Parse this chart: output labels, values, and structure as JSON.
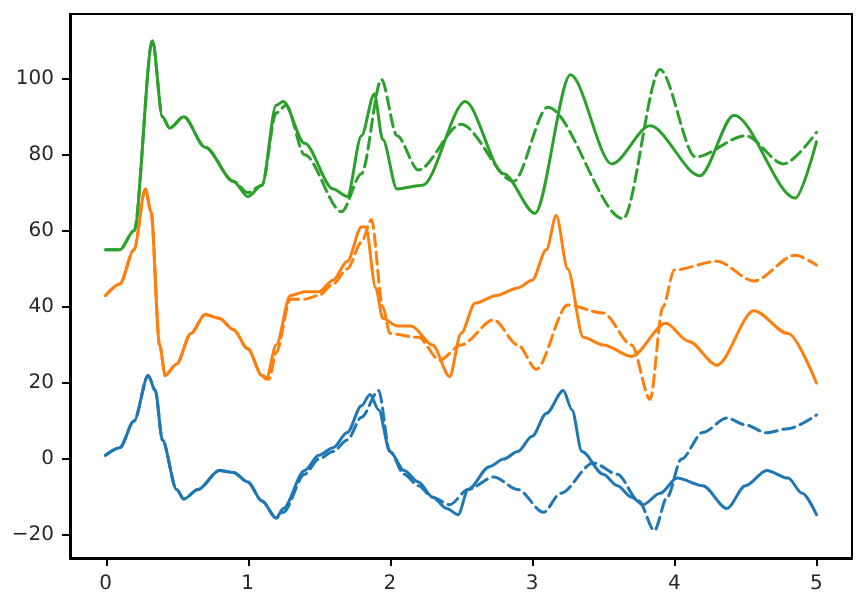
{
  "chart_data": {
    "type": "line",
    "xlim": [
      -0.25,
      5.25
    ],
    "ylim": [
      -26,
      117
    ],
    "xticks": [
      0,
      1,
      2,
      3,
      4,
      5
    ],
    "yticks": [
      -20,
      0,
      20,
      40,
      60,
      80,
      100
    ],
    "grid": false,
    "marker": "none",
    "series": [
      {
        "color": "#1f77b4",
        "line_style": "solid",
        "x": [
          0,
          0.1,
          0.2,
          0.3,
          0.35,
          0.4,
          0.5,
          0.55,
          0.65,
          0.8,
          0.9,
          1.0,
          1.1,
          1.2,
          1.25,
          1.4,
          1.5,
          1.6,
          1.7,
          1.8,
          1.86,
          1.92,
          2.0,
          2.1,
          2.2,
          2.3,
          2.4,
          2.48,
          2.55,
          2.7,
          2.8,
          2.9,
          3.0,
          3.1,
          3.22,
          3.28,
          3.35,
          3.5,
          3.6,
          3.7,
          3.78,
          3.9,
          4.02,
          4.2,
          4.37,
          4.5,
          4.65,
          4.8,
          4.9,
          5.0
        ],
        "values": [
          1,
          3,
          10,
          22,
          18,
          5,
          -8,
          -10.5,
          -8,
          -3,
          -3.5,
          -6,
          -11,
          -15.5,
          -13,
          -3,
          1,
          3,
          7,
          14,
          17,
          13,
          2,
          -3,
          -6,
          -10,
          -13,
          -14.6,
          -8,
          -2,
          0,
          2,
          6,
          12,
          18,
          13,
          2,
          -4,
          -7,
          -10,
          -12,
          -9,
          -5,
          -7,
          -13,
          -7,
          -3,
          -5,
          -9,
          -14.6
        ]
      },
      {
        "color": "#1f77b4",
        "line_style": "dashed",
        "x": [
          0,
          0.1,
          0.2,
          0.3,
          0.35,
          0.4,
          0.5,
          0.55,
          0.65,
          0.8,
          0.9,
          1.0,
          1.1,
          1.2,
          1.25,
          1.4,
          1.5,
          1.6,
          1.7,
          1.8,
          1.92,
          2.0,
          2.1,
          2.2,
          2.3,
          2.42,
          2.55,
          2.73,
          2.9,
          3.08,
          3.2,
          3.43,
          3.6,
          3.75,
          3.86,
          3.95,
          4.05,
          4.2,
          4.37,
          4.5,
          4.65,
          4.8,
          5.0
        ],
        "values": [
          1,
          3,
          10,
          22,
          18,
          5,
          -8,
          -10.5,
          -8,
          -3,
          -3.5,
          -6,
          -11,
          -15.5,
          -14,
          -4,
          0,
          2,
          5,
          11,
          18,
          2,
          -4,
          -7,
          -10,
          -12,
          -8,
          -4.7,
          -8,
          -14,
          -9,
          -1,
          -4,
          -11,
          -18.8,
          -10,
          0,
          7,
          10.8,
          9,
          6.9,
          8,
          11.6
        ]
      },
      {
        "color": "#ff7f0e",
        "line_style": "solid",
        "x": [
          0,
          0.1,
          0.2,
          0.28,
          0.32,
          0.38,
          0.42,
          0.5,
          0.6,
          0.7,
          0.8,
          0.9,
          1.0,
          1.1,
          1.13,
          1.2,
          1.3,
          1.4,
          1.5,
          1.6,
          1.7,
          1.8,
          1.83,
          1.9,
          1.95,
          2.05,
          2.15,
          2.3,
          2.42,
          2.5,
          2.6,
          2.75,
          2.9,
          3.0,
          3.1,
          3.17,
          3.25,
          3.36,
          3.5,
          3.7,
          3.94,
          4.1,
          4.3,
          4.56,
          4.8,
          5.0
        ],
        "values": [
          43,
          46,
          55,
          71,
          65,
          30,
          22,
          25,
          33,
          38,
          37,
          34,
          29,
          22,
          21,
          30,
          43,
          44,
          44,
          47,
          52,
          61,
          61,
          45,
          37,
          35,
          35,
          30,
          21.7,
          33,
          41,
          43,
          45,
          47,
          55,
          64,
          50,
          32,
          30,
          27,
          35.7,
          31,
          24.7,
          39,
          33,
          20
        ]
      },
      {
        "color": "#ff7f0e",
        "line_style": "dashed",
        "x": [
          0,
          0.1,
          0.2,
          0.28,
          0.32,
          0.38,
          0.42,
          0.5,
          0.6,
          0.7,
          0.8,
          0.9,
          1.0,
          1.1,
          1.15,
          1.2,
          1.3,
          1.4,
          1.5,
          1.6,
          1.7,
          1.8,
          1.87,
          1.95,
          2.0,
          2.2,
          2.35,
          2.5,
          2.73,
          2.9,
          3.03,
          3.25,
          3.5,
          3.7,
          3.83,
          3.92,
          4.0,
          4.3,
          4.56,
          4.85,
          5.0
        ],
        "values": [
          43,
          46,
          55,
          71,
          65,
          30,
          22,
          25,
          33,
          38,
          37,
          34,
          29,
          22,
          21,
          28,
          42,
          42,
          43,
          46,
          50,
          57,
          63,
          40,
          33,
          32,
          26,
          30,
          36.6,
          30,
          23.6,
          40.5,
          38.4,
          30,
          15.7,
          40,
          49.7,
          52,
          46.8,
          53.6,
          51
        ]
      },
      {
        "color": "#2ca02c",
        "line_style": "solid",
        "x": [
          0,
          0.1,
          0.2,
          0.33,
          0.4,
          0.45,
          0.55,
          0.7,
          0.9,
          1.0,
          1.1,
          1.2,
          1.25,
          1.4,
          1.6,
          1.7,
          1.8,
          1.89,
          1.95,
          2.05,
          2.23,
          2.53,
          2.8,
          3.02,
          3.27,
          3.56,
          3.83,
          4.18,
          4.42,
          4.85,
          5.0
        ],
        "values": [
          55,
          55,
          60,
          110,
          90,
          87,
          90,
          82,
          73,
          69,
          72,
          93,
          94,
          83,
          71,
          69,
          85,
          96,
          84,
          71,
          72,
          94,
          75,
          64.6,
          101,
          77.6,
          87.6,
          74.5,
          90.4,
          68.6,
          83.4
        ]
      },
      {
        "color": "#2ca02c",
        "line_style": "dashed",
        "x": [
          0,
          0.1,
          0.2,
          0.33,
          0.4,
          0.45,
          0.55,
          0.7,
          0.9,
          1.0,
          1.1,
          1.2,
          1.27,
          1.4,
          1.66,
          1.8,
          1.94,
          2.05,
          2.2,
          2.5,
          2.87,
          3.11,
          3.64,
          3.9,
          4.15,
          4.5,
          4.77,
          5.0
        ],
        "values": [
          55,
          55,
          60,
          110,
          90,
          87,
          90,
          82,
          73,
          70,
          72,
          91,
          93,
          80,
          65,
          75,
          99.8,
          85,
          76,
          88,
          73,
          92.5,
          63.2,
          102.4,
          79.4,
          85,
          77.6,
          85.9
        ]
      }
    ]
  }
}
